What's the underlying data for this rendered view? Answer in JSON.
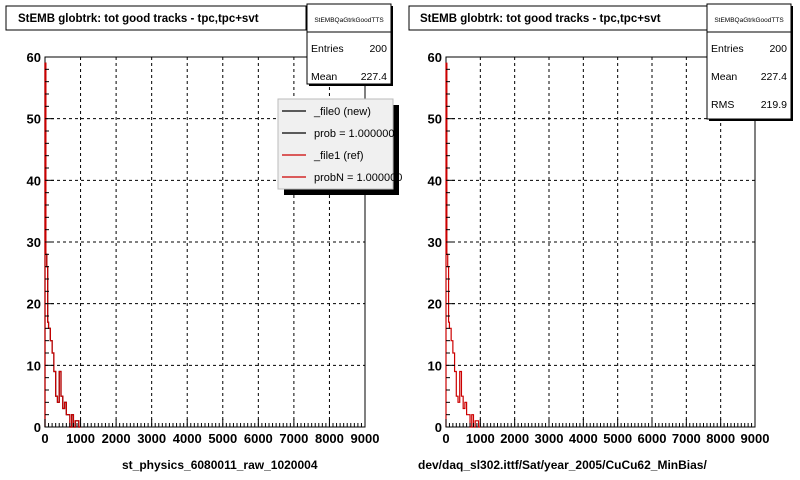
{
  "footer_note": "",
  "colors": {
    "new": "#000000",
    "ref": "#cc0000",
    "grid": "#000000",
    "frame": "#000000"
  },
  "chart_data": [
    {
      "type": "line",
      "title": "StEMB globtrk: tot good tracks - tpc,tpc+svt",
      "xlabel": "st_physics_6080011_raw_1020004",
      "ylabel": "",
      "xlim": [
        0,
        9000
      ],
      "ylim": [
        0,
        60
      ],
      "grid": true,
      "x_ticks": [
        "0",
        "1000",
        "2000",
        "3000",
        "4000",
        "5000",
        "6000",
        "7000",
        "8000",
        "9000"
      ],
      "y_ticks": [
        "0",
        "10",
        "20",
        "30",
        "40",
        "50",
        "60"
      ],
      "stats": {
        "name": "StEMBQaGtrkGoodTTS",
        "rows": [
          {
            "label": "Entries",
            "value": "200"
          },
          {
            "label": "Mean",
            "value": "227.4"
          }
        ]
      },
      "legend": {
        "placement": "top-right",
        "entries": [
          {
            "label": "_file0 (new)",
            "color": "#000000"
          },
          {
            "label": "prob = 1.000000",
            "color": "#000000"
          },
          {
            "label": "_file1 (ref)",
            "color": "#cc0000"
          },
          {
            "label": "probN = 1.000000",
            "color": "#cc0000"
          }
        ]
      },
      "series": [
        {
          "name": "_file0 (new)",
          "bin_edges": [
            0,
            25,
            50,
            75,
            100,
            150,
            200,
            250,
            300,
            350,
            400,
            450,
            500,
            550,
            600,
            700,
            750,
            800,
            850,
            900,
            950,
            1000
          ],
          "values": [
            59,
            28,
            26,
            17,
            16,
            14,
            12,
            9,
            5,
            4,
            9,
            5,
            3,
            4,
            2,
            0,
            2,
            0,
            1,
            1,
            0
          ]
        },
        {
          "name": "_file1 (ref)",
          "bin_edges": [
            0,
            25,
            50,
            75,
            100,
            150,
            200,
            250,
            300,
            350,
            400,
            450,
            500,
            550,
            600,
            700,
            750,
            800,
            850,
            900,
            950,
            1000
          ],
          "values": [
            59,
            28,
            26,
            17,
            16,
            14,
            12,
            9,
            5,
            4,
            9,
            5,
            3,
            4,
            2,
            0,
            2,
            0,
            1,
            1,
            0
          ]
        }
      ]
    },
    {
      "type": "line",
      "title": "StEMB globtrk: tot good tracks - tpc,tpc+svt",
      "xlabel": "dev/daq_sl302.ittf/Sat/year_2005/CuCu62_MinBias/",
      "ylabel": "",
      "xlim": [
        0,
        9000
      ],
      "ylim": [
        0,
        60
      ],
      "grid": true,
      "x_ticks": [
        "0",
        "1000",
        "2000",
        "3000",
        "4000",
        "5000",
        "6000",
        "7000",
        "8000",
        "9000"
      ],
      "y_ticks": [
        "0",
        "10",
        "20",
        "30",
        "40",
        "50",
        "60"
      ],
      "stats": {
        "name": "StEMBQaGtrkGoodTTS",
        "rows": [
          {
            "label": "Entries",
            "value": "200"
          },
          {
            "label": "Mean",
            "value": "227.4"
          },
          {
            "label": "RMS",
            "value": "219.9"
          }
        ]
      },
      "legend": null,
      "series": [
        {
          "name": "",
          "bin_edges": [
            0,
            25,
            50,
            75,
            100,
            150,
            200,
            250,
            300,
            350,
            400,
            450,
            500,
            550,
            600,
            700,
            750,
            800,
            850,
            900,
            950,
            1000
          ],
          "values": [
            59,
            28,
            26,
            17,
            16,
            14,
            12,
            9,
            5,
            4,
            9,
            5,
            3,
            4,
            2,
            0,
            2,
            0,
            1,
            1,
            0
          ]
        }
      ]
    }
  ]
}
